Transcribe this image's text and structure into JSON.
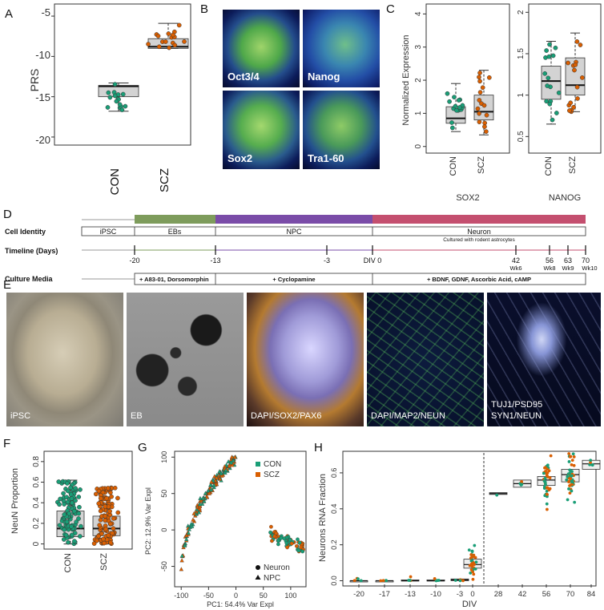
{
  "panels": {
    "A": "A",
    "B": "B",
    "C": "C",
    "D": "D",
    "E": "E",
    "F": "F",
    "G": "G",
    "H": "H"
  },
  "colors": {
    "con": "#1a9e77",
    "scz": "#d95f02",
    "eb": "#7e9c5c",
    "npc": "#7a4ca8",
    "neuron": "#c44f6f"
  },
  "panel_b": {
    "labels": [
      "Oct3/4",
      "Nanog",
      "Sox2",
      "Tra1-60"
    ]
  },
  "panel_d": {
    "rows": [
      "Cell Identity",
      "Timeline (Days)",
      "Culture Media"
    ],
    "stages": [
      "iPSC",
      "EBs",
      "NPC",
      "Neuron"
    ],
    "neuron_note": "Cultured with rodent astrocytes",
    "ticks": [
      "-20",
      "-13",
      "-3",
      "DIV 0",
      "42",
      "56",
      "63",
      "70"
    ],
    "weeks": [
      "Wk6",
      "Wk8",
      "Wk9",
      "Wk10"
    ],
    "media": [
      "+ A83-01, Dorsomorphin",
      "+ Cyclopamine",
      "+ BDNF, GDNF, Ascorbic Acid, cAMP"
    ]
  },
  "panel_e": {
    "labels": [
      "iPSC",
      "EB",
      "DAPI/SOX2/PAX6",
      "DAPI/MAP2/NEUN",
      "TUJ1/PSD95",
      "SYN1/NEUN"
    ]
  },
  "chart_data": [
    {
      "panel": "A",
      "type": "box",
      "categories": [
        "CON",
        "SCZ"
      ],
      "ylabel": "PRS",
      "yticks": [
        -5,
        -10,
        -15,
        -20
      ],
      "ylim": [
        -21,
        -3.5
      ],
      "series": [
        {
          "name": "CON",
          "q1": -15.0,
          "median": -13.7,
          "q3": -13.6,
          "low": -16.8,
          "high": -13.3
        },
        {
          "name": "SCZ",
          "q1": -9.0,
          "median": -8.8,
          "q3": -7.8,
          "low": -9.0,
          "high": -5.9
        }
      ]
    },
    {
      "panel": "C-SOX2",
      "type": "box",
      "categories": [
        "CON",
        "SCZ"
      ],
      "xlabel": "SOX2",
      "ylabel": "Normalized Expression",
      "yticks": [
        0,
        1,
        2,
        3,
        4
      ],
      "ylim": [
        -0.2,
        4.3
      ],
      "series": [
        {
          "name": "CON",
          "q1": 0.7,
          "median": 0.85,
          "q3": 1.2,
          "low": 0.45,
          "high": 1.9
        },
        {
          "name": "SCZ",
          "q1": 0.8,
          "median": 1.05,
          "q3": 1.55,
          "low": 0.35,
          "high": 2.3
        }
      ]
    },
    {
      "panel": "C-NANOG",
      "type": "box",
      "categories": [
        "CON",
        "SCZ"
      ],
      "xlabel": "NANOG",
      "yticks": [
        0.5,
        1.0,
        1.5,
        2.0
      ],
      "ylim": [
        0.3,
        2.1
      ],
      "series": [
        {
          "name": "CON",
          "q1": 0.95,
          "median": 1.17,
          "q3": 1.35,
          "low": 0.65,
          "high": 1.65
        },
        {
          "name": "SCZ",
          "q1": 1.0,
          "median": 1.12,
          "q3": 1.45,
          "low": 0.8,
          "high": 1.75
        }
      ]
    },
    {
      "panel": "F",
      "type": "box",
      "categories": [
        "CON",
        "SCZ"
      ],
      "ylabel": "NeuN Proportion",
      "yticks": [
        0.0,
        0.2,
        0.4,
        0.6,
        0.8
      ],
      "ylim": [
        -0.05,
        0.9
      ],
      "series": [
        {
          "name": "CON",
          "q1": 0.07,
          "median": 0.15,
          "q3": 0.32,
          "low": 0.0,
          "high": 0.62
        },
        {
          "name": "SCZ",
          "q1": 0.08,
          "median": 0.15,
          "q3": 0.27,
          "low": 0.0,
          "high": 0.55
        }
      ]
    },
    {
      "panel": "G",
      "type": "scatter",
      "xlabel": "PC1: 54.4% Var Expl",
      "ylabel": "PC2: 12.9% Var Expl",
      "xticks": [
        -100,
        -50,
        0,
        50,
        100
      ],
      "yticks": [
        -50,
        0,
        50,
        100
      ],
      "xlim": [
        -112,
        128
      ],
      "ylim": [
        -78,
        108
      ],
      "legend": [
        "CON",
        "SCZ"
      ],
      "shape_legend": [
        "Neuron",
        "NPC"
      ]
    },
    {
      "panel": "H",
      "type": "box",
      "xlabel": "DIV",
      "ylabel": "Neurons RNA Fraction",
      "categories": [
        "-20",
        "-17",
        "-13",
        "-10",
        "-3",
        "0",
        "28",
        "42",
        "56",
        "70",
        "84"
      ],
      "yticks": [
        0.0,
        0.2,
        0.4,
        0.6
      ],
      "ylim": [
        -0.02,
        0.72
      ],
      "series": [
        {
          "q1": 0.0,
          "median": 0.0,
          "q3": 0.0
        },
        {
          "q1": 0.0,
          "median": 0.0,
          "q3": 0.0
        },
        {
          "q1": 0.0,
          "median": 0.0,
          "q3": 0.005
        },
        {
          "q1": 0.0,
          "median": 0.0,
          "q3": 0.005
        },
        {
          "q1": 0.0,
          "median": 0.005,
          "q3": 0.01
        },
        {
          "q1": 0.07,
          "median": 0.09,
          "q3": 0.12
        },
        {
          "q1": 0.48,
          "median": 0.485,
          "q3": 0.49
        },
        {
          "q1": 0.52,
          "median": 0.54,
          "q3": 0.56
        },
        {
          "q1": 0.53,
          "median": 0.56,
          "q3": 0.58
        },
        {
          "q1": 0.55,
          "median": 0.59,
          "q3": 0.62
        },
        {
          "q1": 0.62,
          "median": 0.65,
          "q3": 0.67
        }
      ]
    }
  ]
}
